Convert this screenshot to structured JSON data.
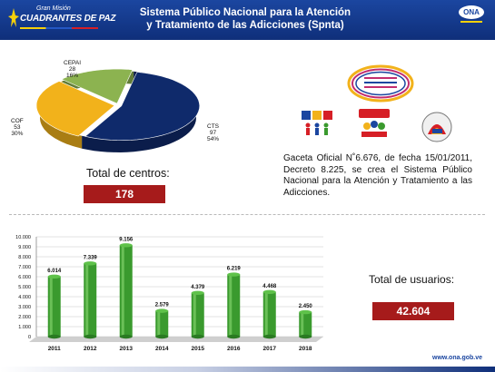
{
  "header": {
    "logo_top": "Gran Misión",
    "logo_main": "CUADRANTES DE PAZ",
    "title_line1": "Sistema Público Nacional para la Atención",
    "title_line2": "y Tratamiento de las Adicciones (Spnta)",
    "ona_logo_text": "ONA"
  },
  "centros": {
    "label": "Total de centros:",
    "value": "178"
  },
  "pie_chart": {
    "type": "pie",
    "slices": [
      {
        "name": "CTS",
        "count": "97",
        "percent": "54%",
        "value": 97,
        "color": "#0f2a6b"
      },
      {
        "name": "COF",
        "count": "53",
        "percent": "30%",
        "value": 53,
        "color": "#f2b21b"
      },
      {
        "name": "CEPAI",
        "count": "28",
        "percent": "16%",
        "value": 28,
        "color": "#8cb350"
      }
    ]
  },
  "program_logos": {
    "spnta_badge": "SPNTA",
    "cof_badge": "COF",
    "cepai_badge": "CEPAI",
    "cts_badge": "CTS"
  },
  "gaceta_text": "Gaceta Oficial N˚6.676, de fecha 15/01/2011, Decreto 8.225, se crea el Sistema Público Nacional para la Atención y Tratamiento a las Adicciones.",
  "usuarios": {
    "label": "Total de usuarios:",
    "value": "42.604"
  },
  "chart_data": {
    "type": "bar",
    "categories": [
      "2011",
      "2012",
      "2013",
      "2014",
      "2015",
      "2016",
      "2017",
      "2018"
    ],
    "values": [
      6014,
      7339,
      9156,
      2579,
      4379,
      6219,
      4468,
      2450
    ],
    "value_labels": [
      "6.014",
      "7.339",
      "9.156",
      "2.579",
      "4.379",
      "6.219",
      "4.468",
      "2.450"
    ],
    "yticks": [
      "0",
      "1.000",
      "2.000",
      "3.000",
      "4.000",
      "5.000",
      "6.000",
      "7.000",
      "8.000",
      "9.000",
      "10.000"
    ],
    "ylim": [
      0,
      10000
    ],
    "bar_color": "#3a9a2e",
    "grid": true
  },
  "footer": {
    "url": "www.ona.gob.ve"
  }
}
